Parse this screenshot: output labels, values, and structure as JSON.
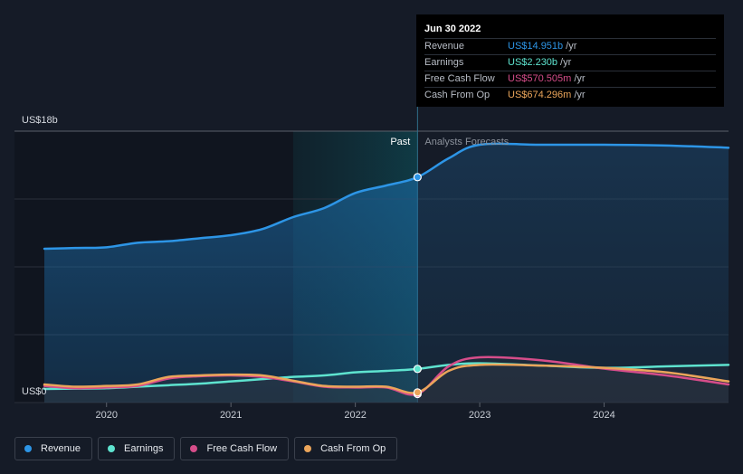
{
  "chart_data": {
    "type": "line",
    "ylabel_top": "US$18b",
    "ylabel_bottom": "US$0",
    "ylim": [
      0,
      18
    ],
    "xlim": [
      2019.5,
      2025.0
    ],
    "x_ticks": [
      {
        "value": 2020,
        "label": "2020"
      },
      {
        "value": 2021,
        "label": "2021"
      },
      {
        "value": 2022,
        "label": "2022"
      },
      {
        "value": 2023,
        "label": "2023"
      },
      {
        "value": 2024,
        "label": "2024"
      }
    ],
    "past_label": "Past",
    "forecast_label": "Analysts Forecasts",
    "divider_x": 2022.5,
    "highlight_start_x": 2021.5,
    "series": [
      {
        "name": "Revenue",
        "color": "#2d95e6",
        "points": [
          [
            2019.5,
            10.2
          ],
          [
            2019.75,
            10.25
          ],
          [
            2020.0,
            10.3
          ],
          [
            2020.25,
            10.6
          ],
          [
            2020.5,
            10.7
          ],
          [
            2020.75,
            10.9
          ],
          [
            2021.0,
            11.1
          ],
          [
            2021.25,
            11.5
          ],
          [
            2021.5,
            12.3
          ],
          [
            2021.75,
            12.9
          ],
          [
            2022.0,
            13.9
          ],
          [
            2022.25,
            14.4
          ],
          [
            2022.5,
            14.95
          ],
          [
            2022.75,
            16.2
          ],
          [
            2023.0,
            17.1
          ],
          [
            2023.5,
            17.1
          ],
          [
            2024.0,
            17.1
          ],
          [
            2024.5,
            17.05
          ],
          [
            2025.0,
            16.9
          ]
        ]
      },
      {
        "name": "Earnings",
        "color": "#5ee3cf",
        "points": [
          [
            2019.5,
            0.9
          ],
          [
            2019.75,
            0.92
          ],
          [
            2020.0,
            0.95
          ],
          [
            2020.25,
            1.05
          ],
          [
            2020.5,
            1.15
          ],
          [
            2020.75,
            1.25
          ],
          [
            2021.0,
            1.4
          ],
          [
            2021.25,
            1.55
          ],
          [
            2021.5,
            1.7
          ],
          [
            2021.75,
            1.8
          ],
          [
            2022.0,
            2.0
          ],
          [
            2022.25,
            2.1
          ],
          [
            2022.5,
            2.23
          ],
          [
            2022.75,
            2.5
          ],
          [
            2023.0,
            2.6
          ],
          [
            2023.5,
            2.45
          ],
          [
            2024.0,
            2.3
          ],
          [
            2024.5,
            2.4
          ],
          [
            2025.0,
            2.5
          ]
        ]
      },
      {
        "name": "Free Cash Flow",
        "color": "#d64d8a",
        "points": [
          [
            2019.5,
            1.1
          ],
          [
            2019.75,
            0.95
          ],
          [
            2020.0,
            1.0
          ],
          [
            2020.25,
            1.1
          ],
          [
            2020.5,
            1.6
          ],
          [
            2020.75,
            1.75
          ],
          [
            2021.0,
            1.8
          ],
          [
            2021.25,
            1.7
          ],
          [
            2021.5,
            1.4
          ],
          [
            2021.75,
            1.05
          ],
          [
            2022.0,
            1.0
          ],
          [
            2022.25,
            1.0
          ],
          [
            2022.5,
            0.57
          ],
          [
            2022.75,
            2.4
          ],
          [
            2023.0,
            3.0
          ],
          [
            2023.5,
            2.8
          ],
          [
            2024.0,
            2.25
          ],
          [
            2024.5,
            1.8
          ],
          [
            2025.0,
            1.2
          ]
        ]
      },
      {
        "name": "Cash From Op",
        "color": "#eba55a",
        "points": [
          [
            2019.5,
            1.2
          ],
          [
            2019.75,
            1.05
          ],
          [
            2020.0,
            1.1
          ],
          [
            2020.25,
            1.2
          ],
          [
            2020.5,
            1.7
          ],
          [
            2020.75,
            1.8
          ],
          [
            2021.0,
            1.85
          ],
          [
            2021.25,
            1.8
          ],
          [
            2021.5,
            1.45
          ],
          [
            2021.75,
            1.1
          ],
          [
            2022.0,
            1.05
          ],
          [
            2022.25,
            1.05
          ],
          [
            2022.5,
            0.67
          ],
          [
            2022.75,
            2.1
          ],
          [
            2023.0,
            2.5
          ],
          [
            2023.5,
            2.45
          ],
          [
            2024.0,
            2.3
          ],
          [
            2024.5,
            2.0
          ],
          [
            2025.0,
            1.4
          ]
        ]
      }
    ],
    "highlight_x": 2022.5,
    "tooltip": {
      "date": "Jun 30 2022",
      "rows": [
        {
          "name": "Revenue",
          "value": "US$14.951b",
          "unit": "/yr",
          "color": "#2d95e6"
        },
        {
          "name": "Earnings",
          "value": "US$2.230b",
          "unit": "/yr",
          "color": "#5ee3cf"
        },
        {
          "name": "Free Cash Flow",
          "value": "US$570.505m",
          "unit": "/yr",
          "color": "#d64d8a"
        },
        {
          "name": "Cash From Op",
          "value": "US$674.296m",
          "unit": "/yr",
          "color": "#eba55a"
        }
      ]
    },
    "legend": [
      {
        "label": "Revenue",
        "color": "#2d95e6"
      },
      {
        "label": "Earnings",
        "color": "#5ee3cf"
      },
      {
        "label": "Free Cash Flow",
        "color": "#d64d8a"
      },
      {
        "label": "Cash From Op",
        "color": "#eba55a"
      }
    ]
  }
}
